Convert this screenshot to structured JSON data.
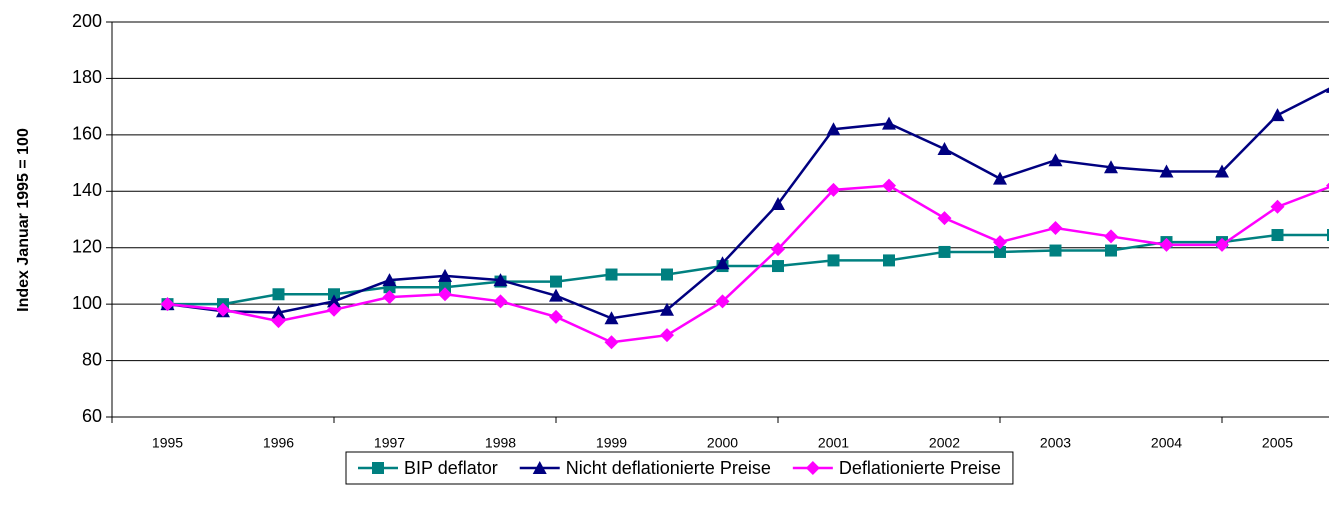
{
  "chart_data": {
    "type": "line",
    "y_label": "Index Januar 1995 = 100",
    "categories": [
      "1995",
      null,
      "1996",
      null,
      "1997",
      null,
      "1998",
      null,
      "1999",
      null,
      "2000",
      null,
      "2001",
      null,
      "2002",
      null,
      "2003",
      null,
      "2004",
      null,
      "2005",
      null
    ],
    "series": [
      {
        "name": "BIP deflator",
        "color": "#008080",
        "marker": "square",
        "values": [
          100,
          100,
          103.5,
          103.5,
          106,
          106,
          108,
          108,
          110.5,
          110.5,
          113.5,
          113.5,
          115.5,
          115.5,
          118.5,
          118.5,
          119,
          119,
          122,
          122,
          124.5,
          124.5
        ]
      },
      {
        "name": "Nicht deflationierte Preise",
        "color": "#000080",
        "marker": "triangle",
        "values": [
          100,
          97.5,
          97,
          101,
          108.5,
          110,
          108.5,
          103,
          95,
          98,
          114.5,
          135.5,
          162,
          164,
          155,
          144.5,
          151,
          148.5,
          147,
          147,
          167,
          177
        ]
      },
      {
        "name": "Deflationierte Preise",
        "color": "#ff00ff",
        "marker": "diamond",
        "values": [
          100,
          98,
          94,
          98,
          102.5,
          103.5,
          101,
          95.5,
          86.5,
          89,
          101,
          119.5,
          140.5,
          142,
          130.5,
          122,
          127,
          124,
          121,
          121,
          134.5,
          142
        ]
      }
    ],
    "ylim": [
      60,
      200
    ],
    "yticks": [
      60,
      80,
      100,
      120,
      140,
      160,
      180,
      200
    ],
    "grid": true,
    "legend": "bottom"
  }
}
